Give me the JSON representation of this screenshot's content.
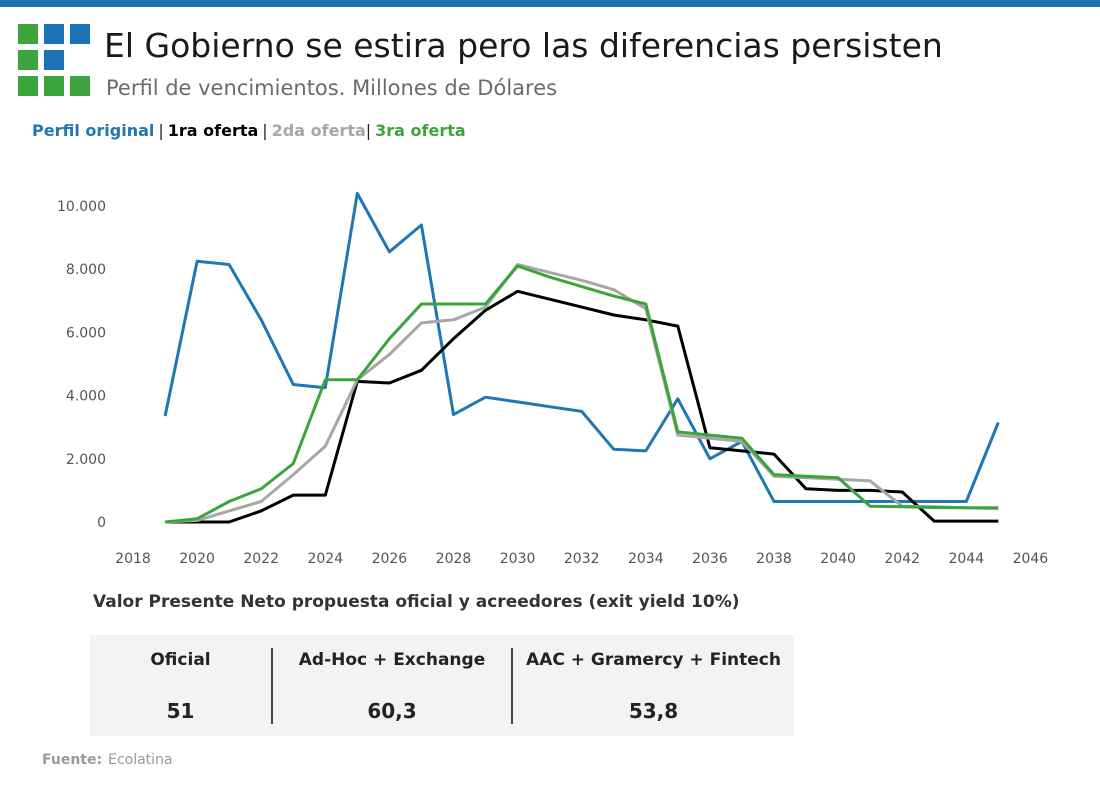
{
  "header": {
    "title": "El Gobierno se estira pero las diferencias persisten",
    "subtitle": "Perfil de vencimientos. Millones de Dólares"
  },
  "legend": {
    "items": [
      {
        "label": "Perfil original",
        "color": "#1f77b4"
      },
      {
        "label": "1ra oferta",
        "color": "#000000"
      },
      {
        "label": "2da oferta",
        "color": "#a8a6a6"
      },
      {
        "label": "3ra oferta",
        "color": "#3ba53b"
      }
    ]
  },
  "chart_data": {
    "type": "line",
    "title": "",
    "xlabel": "",
    "ylabel": "",
    "xlim": [
      2017.5,
      2046.5
    ],
    "ylim": [
      0,
      10500
    ],
    "x_ticks": [
      2018,
      2020,
      2022,
      2024,
      2026,
      2028,
      2030,
      2032,
      2034,
      2036,
      2038,
      2040,
      2042,
      2044,
      2046
    ],
    "y_ticks": [
      0,
      2000,
      4000,
      6000,
      8000,
      10000
    ],
    "y_tick_labels": [
      "0",
      "2.000",
      "4.000",
      "6.000",
      "8.000",
      "10.000"
    ],
    "grid": false,
    "series": [
      {
        "name": "Perfil original",
        "color": "#1f77b4",
        "x": [
          2019,
          2020,
          2021,
          2022,
          2023,
          2024,
          2025,
          2026,
          2027,
          2028,
          2029,
          2030,
          2031,
          2032,
          2033,
          2034,
          2035,
          2036,
          2037,
          2038,
          2039,
          2040,
          2041,
          2042,
          2043,
          2044,
          2045
        ],
        "y": [
          3350,
          8250,
          8150,
          6400,
          4350,
          4250,
          10400,
          8550,
          9400,
          3400,
          3950,
          3800,
          3650,
          3500,
          2300,
          2250,
          3900,
          2000,
          2550,
          650,
          650,
          650,
          650,
          650,
          650,
          650,
          3150
        ]
      },
      {
        "name": "1ra oferta",
        "color": "#000000",
        "x": [
          2019,
          2020,
          2021,
          2022,
          2023,
          2024,
          2025,
          2026,
          2027,
          2028,
          2029,
          2030,
          2031,
          2032,
          2033,
          2034,
          2035,
          2036,
          2037,
          2038,
          2039,
          2040,
          2041,
          2042,
          2043,
          2044,
          2045
        ],
        "y": [
          0,
          0,
          0,
          350,
          850,
          850,
          4450,
          4400,
          4800,
          5800,
          6700,
          7300,
          7050,
          6800,
          6550,
          6400,
          6200,
          2350,
          2250,
          2150,
          1050,
          1000,
          1000,
          950,
          30,
          30,
          30
        ]
      },
      {
        "name": "2da oferta",
        "color": "#a8a6a6",
        "x": [
          2019,
          2020,
          2021,
          2022,
          2023,
          2024,
          2025,
          2026,
          2027,
          2028,
          2029,
          2030,
          2031,
          2032,
          2033,
          2034,
          2035,
          2036,
          2037,
          2038,
          2039,
          2040,
          2041,
          2042,
          2043,
          2044,
          2045
        ],
        "y": [
          0,
          50,
          350,
          650,
          1500,
          2400,
          4500,
          5300,
          6300,
          6400,
          6800,
          8150,
          7900,
          7650,
          7350,
          6750,
          2750,
          2650,
          2550,
          1450,
          1400,
          1350,
          1300,
          500,
          480,
          450,
          420
        ]
      },
      {
        "name": "3ra oferta",
        "color": "#3ba53b",
        "x": [
          2019,
          2020,
          2021,
          2022,
          2023,
          2024,
          2025,
          2026,
          2027,
          2028,
          2029,
          2030,
          2031,
          2032,
          2033,
          2034,
          2035,
          2036,
          2037,
          2038,
          2039,
          2040,
          2041,
          2042,
          2043,
          2044,
          2045
        ],
        "y": [
          0,
          100,
          650,
          1050,
          1850,
          4500,
          4500,
          5800,
          6900,
          6900,
          6900,
          8100,
          7750,
          7450,
          7150,
          6900,
          2850,
          2750,
          2650,
          1500,
          1450,
          1400,
          500,
          480,
          460,
          450,
          450
        ]
      }
    ]
  },
  "npv": {
    "title": "Valor Presente Neto propuesta oficial y acreedores (exit yield 10%)",
    "columns": [
      {
        "header": "Oficial",
        "value": "51"
      },
      {
        "header": "Ad-Hoc + Exchange",
        "value": "60,3"
      },
      {
        "header": "AAC + Gramercy + Fintech",
        "value": "53,8"
      }
    ]
  },
  "source": {
    "label": "Fuente:",
    "text": "Ecolatina"
  },
  "colors": {
    "brand_blue": "#1a72b5",
    "brand_green": "#3ba53b",
    "table_bg": "#f1f4f2"
  }
}
